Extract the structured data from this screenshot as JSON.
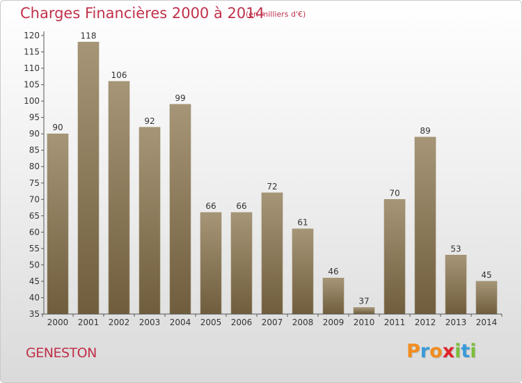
{
  "header": {
    "title": "Charges Financières 2000 à 2014",
    "subtitle": "(en milliers d'€)"
  },
  "footer": {
    "commune": "GENESTON",
    "brand_letters": [
      "P",
      "r",
      "o",
      "x",
      "i",
      "t",
      "i"
    ]
  },
  "colors": {
    "title": "#c0304a",
    "bar_light": "#a69677",
    "bar_dark": "#6f5d3d",
    "brand": [
      "#f28c1e",
      "#3a9ad9",
      "#f28c1e",
      "#e2232a",
      "#7cbf3a",
      "#3a9ad9",
      "#7cbf3a"
    ]
  },
  "chart_data": {
    "type": "bar",
    "categories": [
      "2000",
      "2001",
      "2002",
      "2003",
      "2004",
      "2005",
      "2006",
      "2007",
      "2008",
      "2009",
      "2010",
      "2011",
      "2012",
      "2013",
      "2014"
    ],
    "values": [
      90,
      118,
      106,
      92,
      99,
      66,
      66,
      72,
      61,
      46,
      37,
      70,
      89,
      53,
      45
    ],
    "ylim": [
      35,
      120
    ],
    "yticks": [
      35,
      40,
      45,
      50,
      55,
      60,
      65,
      70,
      75,
      80,
      85,
      90,
      95,
      100,
      105,
      110,
      115,
      120
    ],
    "grid": false,
    "data_labels": true
  }
}
